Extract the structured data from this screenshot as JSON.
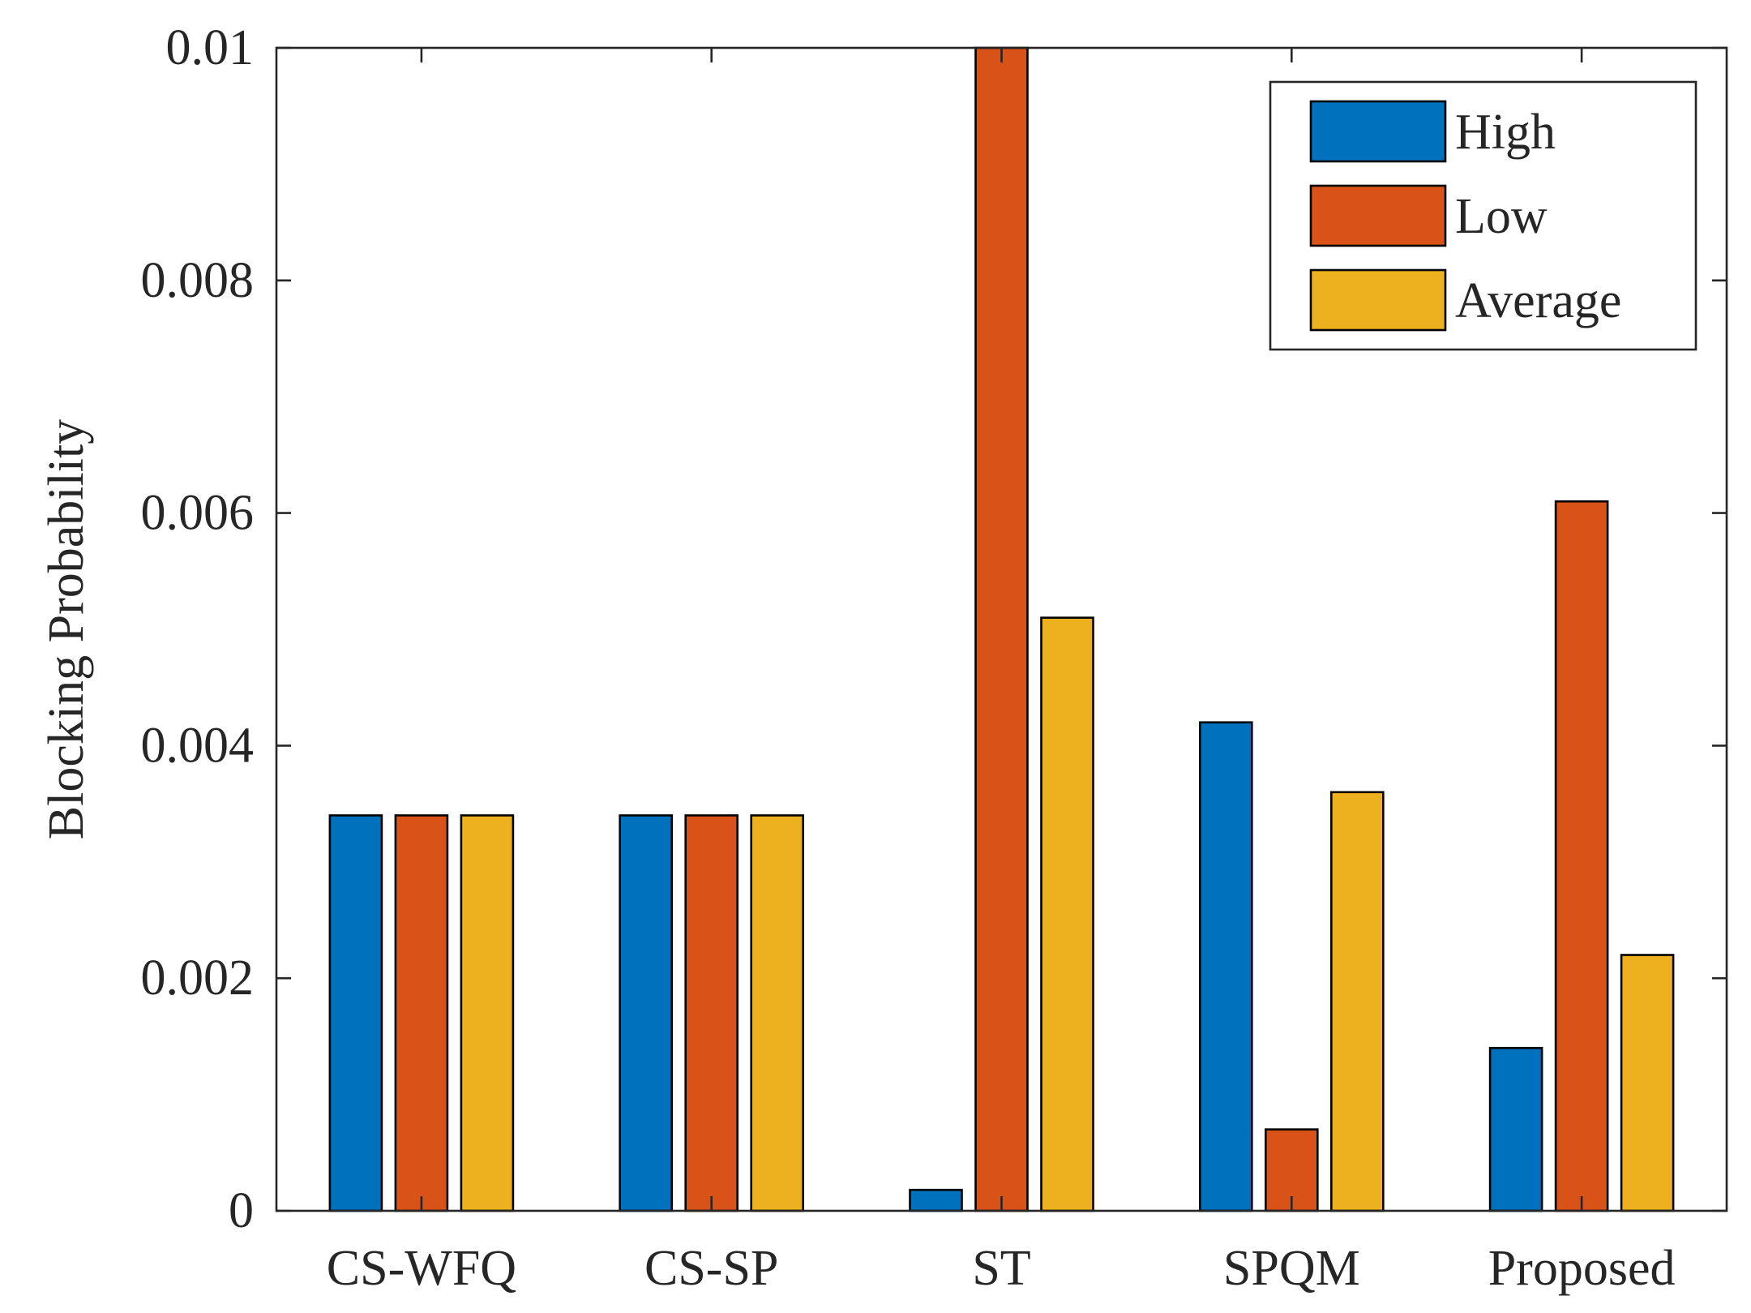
{
  "chart_data": {
    "type": "bar",
    "categories": [
      "CS-WFQ",
      "CS-SP",
      "ST",
      "SPQM",
      "Proposed"
    ],
    "series": [
      {
        "name": "High",
        "color": "#0072BD",
        "values": [
          0.0034,
          0.0034,
          0.00018,
          0.0042,
          0.0014
        ]
      },
      {
        "name": "Low",
        "color": "#D95319",
        "values": [
          0.0034,
          0.0034,
          0.01,
          0.0007,
          0.0061
        ]
      },
      {
        "name": "Average",
        "color": "#EDB120",
        "values": [
          0.0034,
          0.0034,
          0.0051,
          0.0036,
          0.0022
        ]
      }
    ],
    "ylabel": "Blocking Probability",
    "xlabel": "",
    "ylim": [
      0,
      0.01
    ],
    "yticks": [
      0,
      0.002,
      0.004,
      0.006,
      0.008,
      0.01
    ],
    "ytick_labels": [
      "0",
      "0.002",
      "0.004",
      "0.006",
      "0.008",
      "0.01"
    ],
    "legend_position": "top-right",
    "grid": false
  }
}
